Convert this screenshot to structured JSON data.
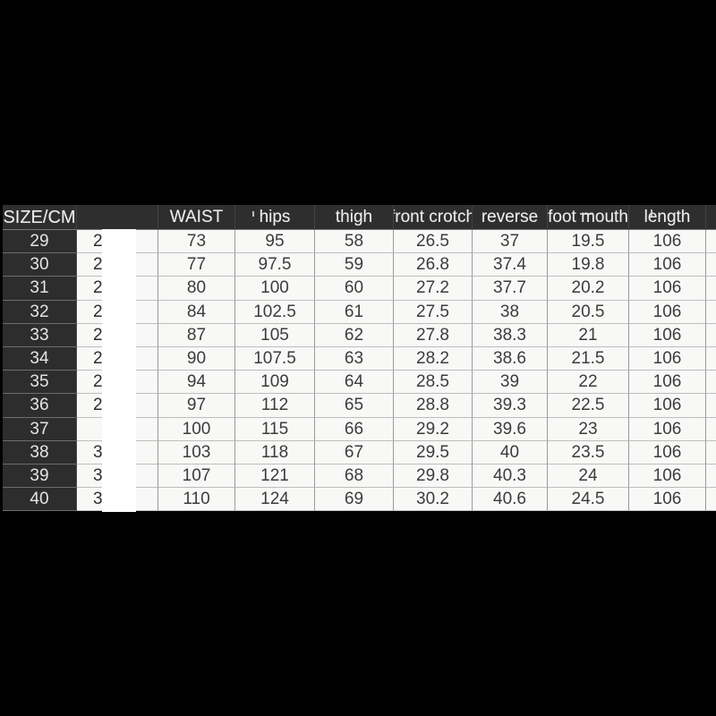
{
  "chart_data": {
    "type": "table",
    "columns": [
      "SIZE/CM",
      "",
      "WAIST",
      "hips",
      "thigh",
      "front crotch",
      "reverse",
      "foot mouth",
      "length"
    ],
    "rows": [
      [
        "29",
        "2",
        "73",
        "95",
        "58",
        "26.5",
        "37",
        "19.5",
        "106"
      ],
      [
        "30",
        "2",
        "77",
        "97.5",
        "59",
        "26.8",
        "37.4",
        "19.8",
        "106"
      ],
      [
        "31",
        "2",
        "80",
        "100",
        "60",
        "27.2",
        "37.7",
        "20.2",
        "106"
      ],
      [
        "32",
        "2",
        "84",
        "102.5",
        "61",
        "27.5",
        "38",
        "20.5",
        "106"
      ],
      [
        "33",
        "2",
        "87",
        "105",
        "62",
        "27.8",
        "38.3",
        "21",
        "106"
      ],
      [
        "34",
        "2",
        "90",
        "107.5",
        "63",
        "28.2",
        "38.6",
        "21.5",
        "106"
      ],
      [
        "35",
        "2",
        "94",
        "109",
        "64",
        "28.5",
        "39",
        "22",
        "106"
      ],
      [
        "36",
        "2",
        "97",
        "112",
        "65",
        "28.8",
        "39.3",
        "22.5",
        "106"
      ],
      [
        "37",
        "",
        "100",
        "115",
        "66",
        "29.2",
        "39.6",
        "23",
        "106"
      ],
      [
        "38",
        "3",
        "103",
        "118",
        "67",
        "29.5",
        "40",
        "23.5",
        "106"
      ],
      [
        "39",
        "3",
        "107",
        "121",
        "68",
        "29.8",
        "40.3",
        "24",
        "106"
      ],
      [
        "40",
        "3",
        "110",
        "124",
        "69",
        "30.2",
        "40.6",
        "24.5",
        "106"
      ]
    ],
    "censored_column_index": 1,
    "notes": "second column values hidden by white rectangle; only partial digit slivers visible"
  },
  "colors": {
    "canvas": "#000000",
    "header_bg": "#2e2e2e",
    "header_text": "#eeeeee",
    "row_header_bg": "#2d2d2d",
    "row_header_text": "#e4e4e4",
    "cell_bg": "#f8f8f7",
    "cell_text": "#3c3c3c",
    "gridline": "#9a9a9a",
    "censor_rect": "#ffffff"
  }
}
